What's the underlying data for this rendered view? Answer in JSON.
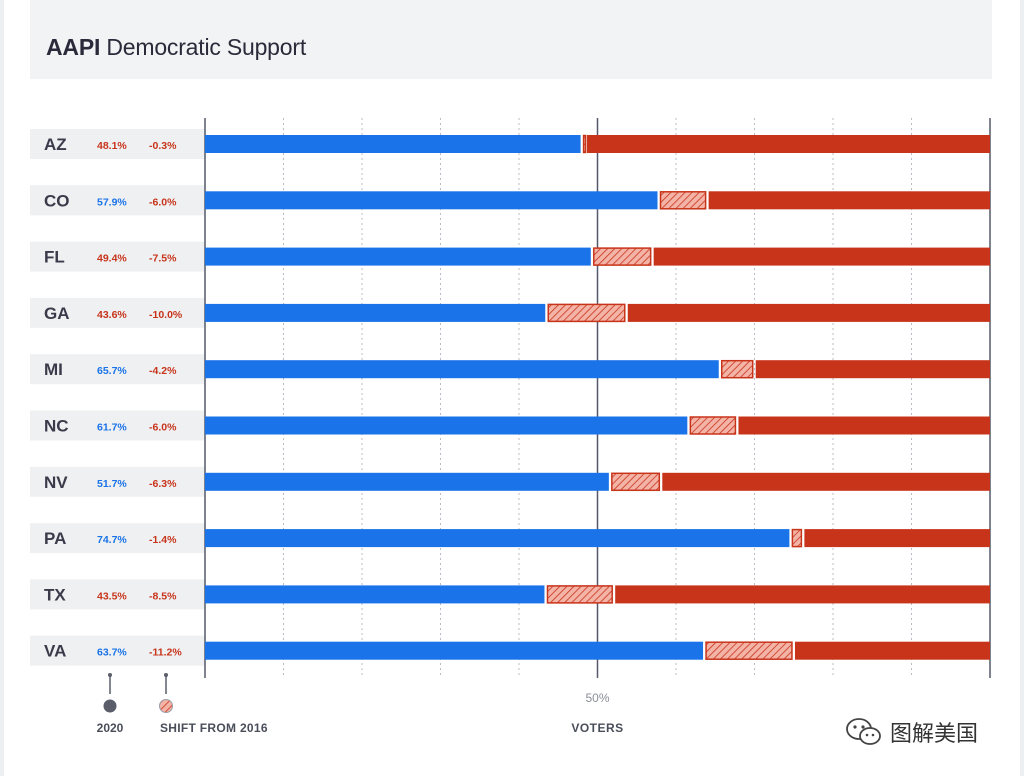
{
  "title": {
    "bold": "AAPI",
    "rest": "Democratic Support"
  },
  "colors": {
    "dem": "#1a73e8",
    "rep": "#c8341a",
    "shift_fill": "#f3b3a6",
    "shift_stroke": "#c8341a",
    "row_band": "#eef0f2",
    "state_text": "#3a3a4a",
    "axis": "#55596a",
    "grid": "#b8bcc4"
  },
  "chart_data": {
    "type": "bar",
    "title": "AAPI Democratic Support",
    "xlabel": "VOTERS",
    "reference_line": {
      "value": 50,
      "label": "50%"
    },
    "xlim": [
      0,
      100
    ],
    "legend": {
      "dem_label": "2020",
      "shift_label": "SHIFT FROM 2016",
      "position": "bottom-left"
    },
    "rows": [
      {
        "state": "AZ",
        "dem_2020": 48.1,
        "dem_label": "48.1%",
        "shift": -0.3,
        "shift_label": "-0.3%"
      },
      {
        "state": "CO",
        "dem_2020": 57.9,
        "dem_label": "57.9%",
        "shift": -6.0,
        "shift_label": "-6.0%"
      },
      {
        "state": "FL",
        "dem_2020": 49.4,
        "dem_label": "49.4%",
        "shift": -7.5,
        "shift_label": "-7.5%"
      },
      {
        "state": "GA",
        "dem_2020": 43.6,
        "dem_label": "43.6%",
        "shift": -10.0,
        "shift_label": "-10.0%"
      },
      {
        "state": "MI",
        "dem_2020": 65.7,
        "dem_label": "65.7%",
        "shift": -4.2,
        "shift_label": "-4.2%"
      },
      {
        "state": "NC",
        "dem_2020": 61.7,
        "dem_label": "61.7%",
        "shift": -6.0,
        "shift_label": "-6.0%"
      },
      {
        "state": "NV",
        "dem_2020": 51.7,
        "dem_label": "51.7%",
        "shift": -6.3,
        "shift_label": "-6.3%"
      },
      {
        "state": "PA",
        "dem_2020": 74.7,
        "dem_label": "74.7%",
        "shift": -1.4,
        "shift_label": "-1.4%"
      },
      {
        "state": "TX",
        "dem_2020": 43.5,
        "dem_label": "43.5%",
        "shift": -8.5,
        "shift_label": "-8.5%"
      },
      {
        "state": "VA",
        "dem_2020": 63.7,
        "dem_label": "63.7%",
        "shift": -11.2,
        "shift_label": "-11.2%"
      }
    ]
  },
  "watermark": {
    "text": "图解美国",
    "icon": "wechat-icon"
  }
}
